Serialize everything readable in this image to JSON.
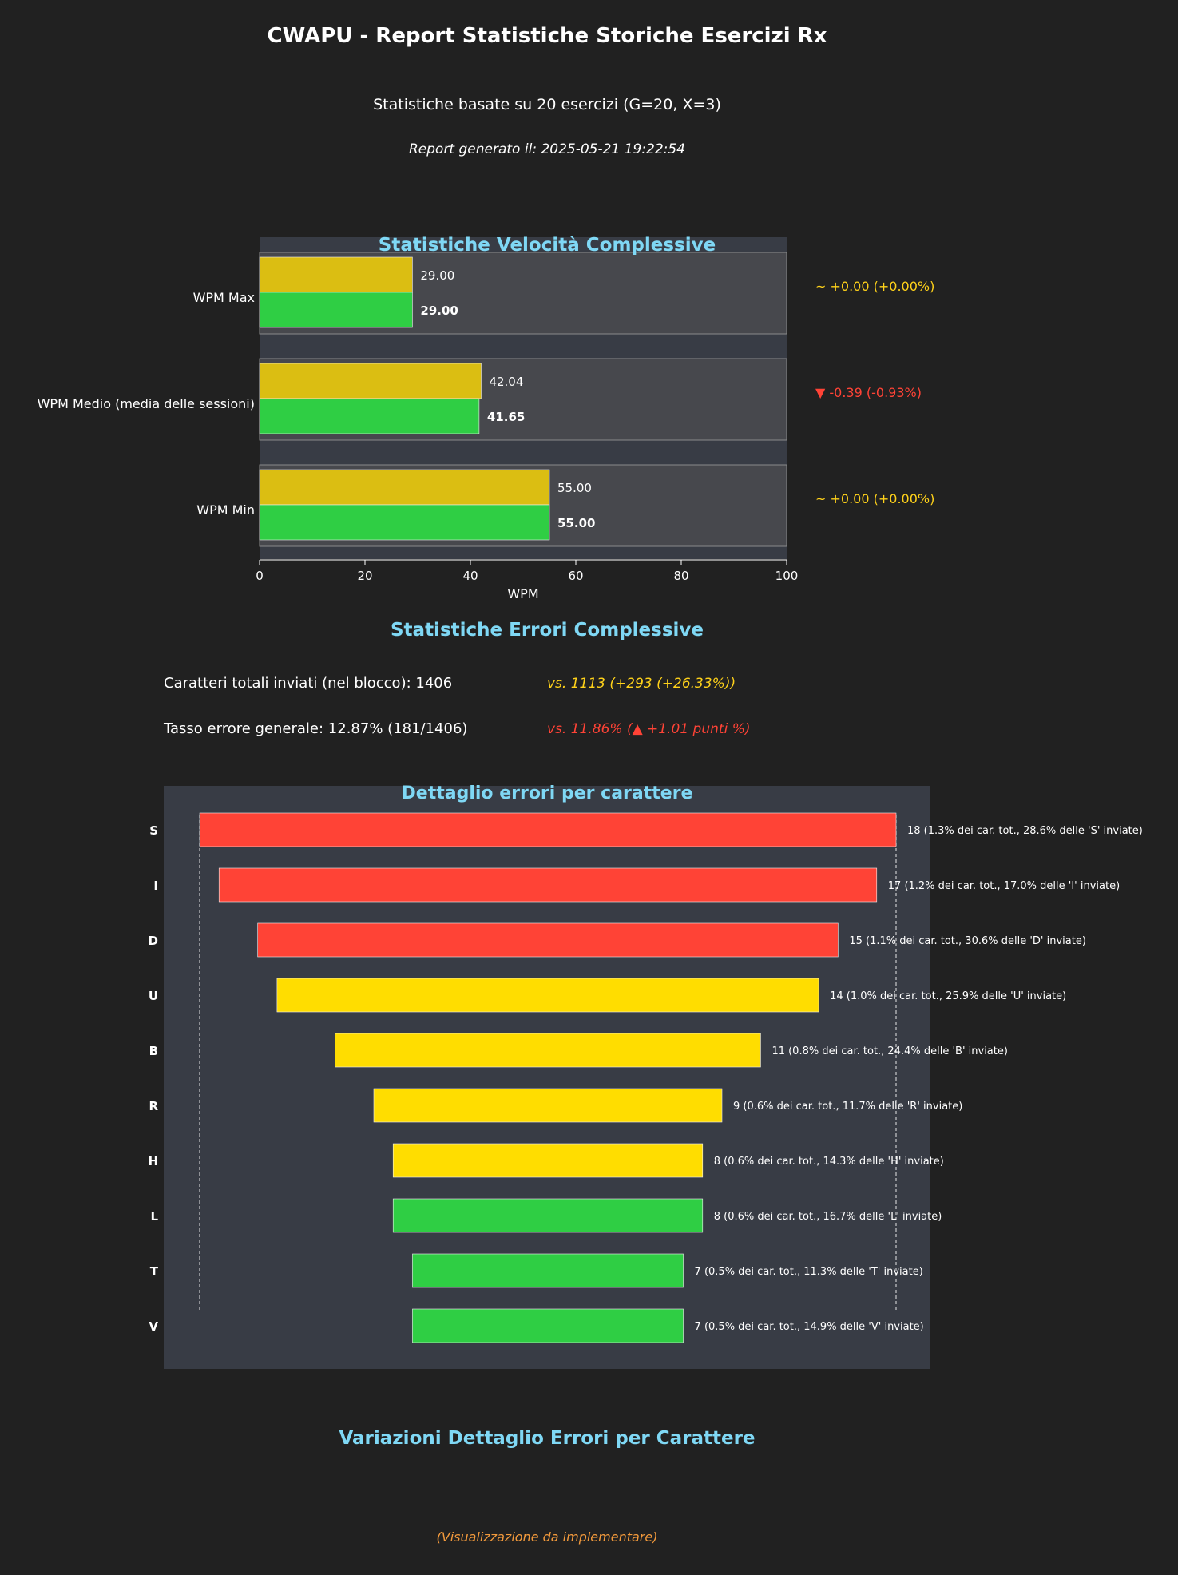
{
  "header": {
    "title": "CWAPU - Report Statistiche Storiche Esercizi Rx",
    "subtitle": "Statistiche basate su 20 esercizi (G=20, X=3)",
    "generated": "Report generato il: 2025-05-21 19:22:54"
  },
  "colors": {
    "background": "#212121",
    "panel": "#383c45",
    "band": "#47484d",
    "title_cyan": "#7fd8f5",
    "bar_yellow": "#dbbe12",
    "bar_green": "#2fce44",
    "err_red": "#ff4336",
    "err_yellow": "#ffdd00",
    "delta_yellow": "#ffd21a",
    "delta_red": "#ff4336",
    "orange": "#f39a3c"
  },
  "chart_data": [
    {
      "type": "bar",
      "orientation": "horizontal",
      "title": "Statistiche Velocità Complessive",
      "xlabel": "WPM",
      "xlim": [
        0,
        100
      ],
      "x_ticks": [
        "0",
        "20",
        "40",
        "60",
        "80",
        "100"
      ],
      "categories": [
        "WPM Max",
        "WPM Medio (media delle sessioni)",
        "WPM Min"
      ],
      "series": [
        {
          "values": [
            29.0,
            42.04,
            55.0
          ],
          "labels": [
            "29.00",
            "42.04",
            "55.00"
          ],
          "color": "#dbbe12"
        },
        {
          "values": [
            29.0,
            41.65,
            55.0
          ],
          "labels": [
            "29.00",
            "41.65",
            "55.00"
          ],
          "color": "#2fce44"
        }
      ],
      "deltas": [
        {
          "text": "~ +0.00 (+0.00%)",
          "color": "#ffd21a"
        },
        {
          "text": "▼ -0.39 (-0.93%)",
          "color": "#ff4336"
        },
        {
          "text": "~ +0.00 (+0.00%)",
          "color": "#ffd21a"
        }
      ]
    },
    {
      "type": "bar",
      "orientation": "horizontal",
      "style": "centered",
      "title": "Dettaglio errori per carattere",
      "categories": [
        "S",
        "I",
        "D",
        "U",
        "B",
        "R",
        "H",
        "L",
        "T",
        "V"
      ],
      "values": [
        18,
        17,
        15,
        14,
        11,
        9,
        8,
        8,
        7,
        7
      ],
      "colors": [
        "#ff4336",
        "#ff4336",
        "#ff4336",
        "#ffdd00",
        "#ffdd00",
        "#ffdd00",
        "#ffdd00",
        "#2fce44",
        "#2fce44",
        "#2fce44"
      ],
      "labels": [
        "18 (1.3% dei car. tot., 28.6% delle 'S' inviate)",
        "17 (1.2% dei car. tot., 17.0% delle 'I' inviate)",
        "15 (1.1% dei car. tot., 30.6% delle 'D' inviate)",
        "14 (1.0% dei car. tot., 25.9% delle 'U' inviate)",
        "11 (0.8% dei car. tot., 24.4% delle 'B' inviate)",
        "9 (0.6% dei car. tot., 11.7% delle 'R' inviate)",
        "8 (0.6% dei car. tot., 14.3% delle 'H' inviate)",
        "8 (0.6% dei car. tot., 16.7% delle 'L' inviate)",
        "7 (0.5% dei car. tot., 11.3% delle 'T' inviate)",
        "7 (0.5% dei car. tot., 14.9% delle 'V' inviate)"
      ]
    }
  ],
  "errors": {
    "title": "Statistiche Errori Complessive",
    "chars_sent": "Caratteri totali inviati (nel blocco): 1406",
    "chars_sent_vs": "vs. 1113 (+293 (+26.33%))",
    "error_rate": "Tasso errore generale: 12.87% (181/1406)",
    "error_rate_vs": "vs. 11.86% (▲ +1.01 punti %)"
  },
  "variations": {
    "title": "Variazioni Dettaglio Errori per Carattere",
    "placeholder": "(Visualizzazione da implementare)"
  }
}
